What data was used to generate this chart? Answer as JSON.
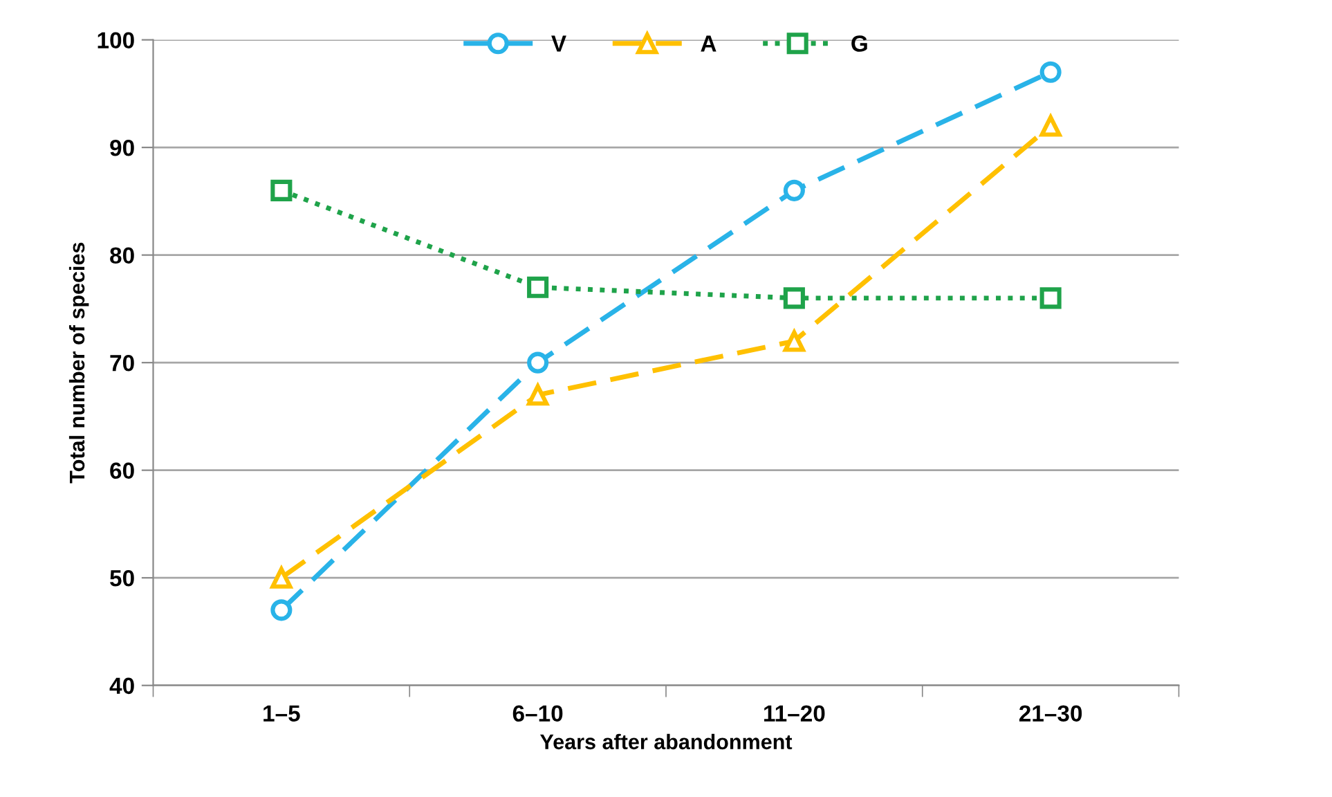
{
  "chart_data": {
    "type": "line",
    "xlabel": "Years after abandonment",
    "ylabel": "Total number of species",
    "categories": [
      "1–5",
      "6–10",
      "11–20",
      "21–30"
    ],
    "series": [
      {
        "name": "V",
        "color": "#29b3e8",
        "values": [
          47,
          70,
          86,
          97
        ],
        "marker": "circle",
        "line_style": "dashed"
      },
      {
        "name": "A",
        "color": "#ffc000",
        "values": [
          50,
          67,
          72,
          92
        ],
        "marker": "triangle",
        "line_style": "dashed"
      },
      {
        "name": "G",
        "color": "#1fa34a",
        "values": [
          86,
          77,
          76,
          76
        ],
        "marker": "square",
        "line_style": "dotted"
      }
    ],
    "ylim": [
      40,
      100
    ],
    "yticks": [
      40,
      50,
      60,
      70,
      80,
      90,
      100
    ],
    "grid": "y",
    "legend": "top"
  }
}
